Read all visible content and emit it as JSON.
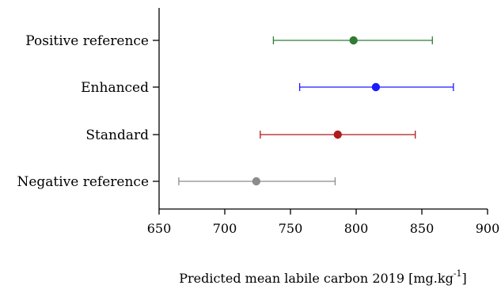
{
  "chart_data": {
    "type": "scatter",
    "orientation": "horizontal",
    "error_bars": true,
    "categories": [
      "Positive reference",
      "Enhanced",
      "Standard",
      "Negative reference"
    ],
    "series": [
      {
        "category": "Positive reference",
        "mean": 798,
        "lower": 737,
        "upper": 858,
        "color": "#2e7d32"
      },
      {
        "category": "Enhanced",
        "mean": 815,
        "lower": 757,
        "upper": 874,
        "color": "#1a1aff"
      },
      {
        "category": "Standard",
        "mean": 786,
        "lower": 727,
        "upper": 845,
        "color": "#b01c1c"
      },
      {
        "category": "Negative reference",
        "mean": 724,
        "lower": 665,
        "upper": 784,
        "color": "#8c8c8c"
      }
    ],
    "xlim": [
      650,
      900
    ],
    "xticks": [
      "650",
      "700",
      "750",
      "800",
      "850",
      "900"
    ],
    "xlabel": {
      "main": "Predicted mean labile carbon 2019 [mg.kg",
      "sup": "-1",
      "end": "]"
    },
    "grid": false,
    "legend": "none"
  }
}
